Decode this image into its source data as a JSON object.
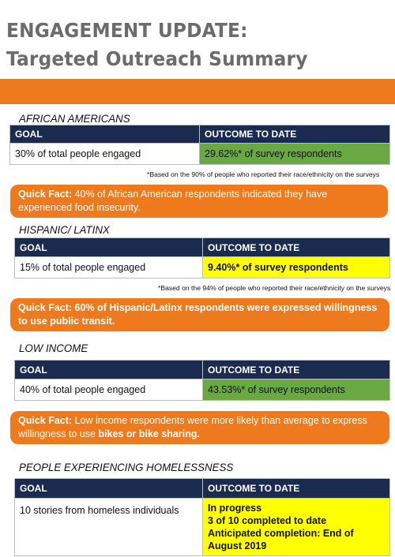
{
  "title": {
    "line1": "ENGAGEMENT UPDATE:",
    "line2": "Targeted Outreach Summary"
  },
  "colors": {
    "accent_orange": "#ef7a1e",
    "header_navy": "#1a2b4f",
    "green": "#6aa843",
    "yellow": "#ffff00",
    "title_gray": "#6b6b6b"
  },
  "sections": [
    {
      "title": "AFRICAN AMERICANS",
      "header_goal": "GOAL",
      "header_outcome": "OUTCOME TO DATE",
      "goal": "30% of total people engaged",
      "outcome": "29.62%* of survey respondents",
      "footnote": "*Based on the 90% of people who reported their race/ethnicity on the surveys",
      "fact_label": "Quick Fact:",
      "fact_text": " 40% of African American respondents indicated they have experienced  food insecurity."
    },
    {
      "title": "HISPANIC/ LATINX",
      "header_goal": "GOAL",
      "header_outcome": "OUTCOME TO DATE",
      "goal": "15% of total people engaged",
      "outcome": "9.40%* of survey respondents",
      "footnote": "*Based on the 94% of people who reported their race/ethnicity on the surveys",
      "fact_label": "Quick Fact:",
      "fact_text": " 60% of Hispanic/Latinx respondents were expressed willingness to use public transit."
    },
    {
      "title": "LOW INCOME",
      "header_goal": "GOAL",
      "header_outcome": "OUTCOME TO DATE",
      "goal": "40% of total people engaged",
      "outcome": "43.53%* of survey respondents",
      "fact_label": "Quick Fact:",
      "fact_text_a": " Low income respondents were more likely than average to express willingness to use ",
      "fact_bold": "bikes or bike sharing."
    },
    {
      "title": "PEOPLE EXPERIENCING HOMELESSNESS",
      "header_goal": "GOAL",
      "header_outcome": "OUTCOME TO DATE",
      "goal": "10 stories from homeless individuals",
      "outcome_lines": [
        "In progress",
        "3 of 10 completed to date",
        "Anticipated completion: End of August 2019"
      ]
    }
  ]
}
